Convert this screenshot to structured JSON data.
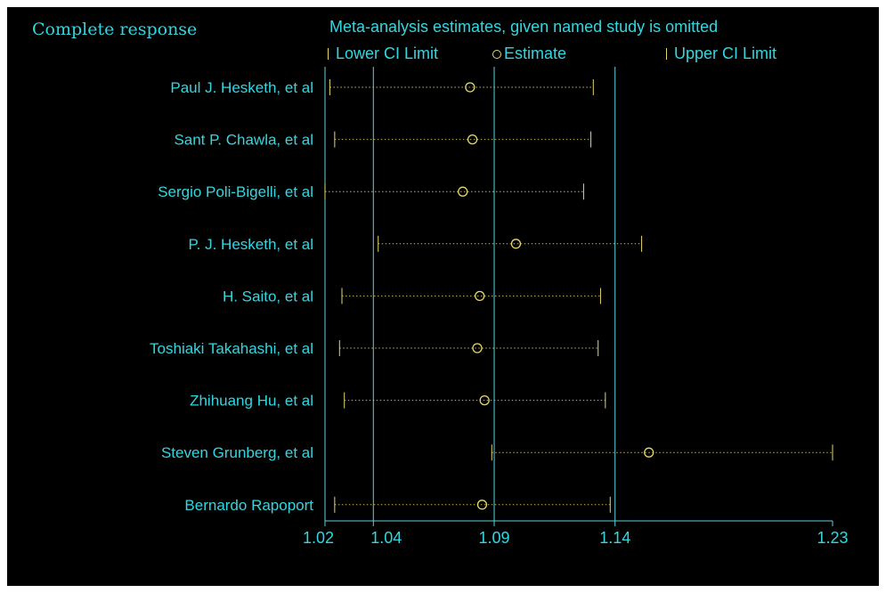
{
  "corner_title": "Complete response",
  "main_title": "Meta-analysis estimates, given named study is omitted",
  "legend": {
    "lower": "Lower CI Limit",
    "estimate": "Estimate",
    "upper": "Upper CI Limit"
  },
  "colors": {
    "background": "#000000",
    "text": "#33d6e0",
    "axis": "#5fd3df",
    "marks": "#e6d86a"
  },
  "chart_data": {
    "type": "forest",
    "title": "Meta-analysis estimates, given named study is omitted",
    "xlim": [
      1.02,
      1.23
    ],
    "x_ticks": [
      {
        "value": 1.02,
        "label": "1.02"
      },
      {
        "value": 1.04,
        "label": "1.04"
      },
      {
        "value": 1.09,
        "label": "1.09"
      },
      {
        "value": 1.14,
        "label": "1.14"
      },
      {
        "value": 1.23,
        "label": "1.23"
      }
    ],
    "reference_lines": [
      1.04,
      1.09,
      1.14
    ],
    "studies": [
      {
        "name": "Paul J. Hesketh, et al",
        "lower": 1.022,
        "estimate": 1.08,
        "upper": 1.131
      },
      {
        "name": "Sant P. Chawla, et al",
        "lower": 1.024,
        "estimate": 1.081,
        "upper": 1.13
      },
      {
        "name": "Sergio Poli-Bigelli, et al",
        "lower": 1.02,
        "estimate": 1.077,
        "upper": 1.127
      },
      {
        "name": "P. J. Hesketh, et al",
        "lower": 1.042,
        "estimate": 1.099,
        "upper": 1.151
      },
      {
        "name": "H. Saito, et al",
        "lower": 1.027,
        "estimate": 1.084,
        "upper": 1.134
      },
      {
        "name": "Toshiaki Takahashi, et al",
        "lower": 1.026,
        "estimate": 1.083,
        "upper": 1.133
      },
      {
        "name": "Zhihuang Hu, et al",
        "lower": 1.028,
        "estimate": 1.086,
        "upper": 1.136
      },
      {
        "name": "Steven Grunberg, et al",
        "lower": 1.089,
        "estimate": 1.154,
        "upper": 1.23
      },
      {
        "name": "Bernardo Rapoport",
        "lower": 1.024,
        "estimate": 1.085,
        "upper": 1.138
      }
    ]
  }
}
